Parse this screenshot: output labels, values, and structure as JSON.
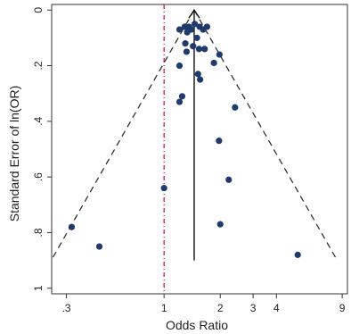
{
  "chart_data": {
    "type": "scatter",
    "title": "",
    "xlabel": "Odds Ratio",
    "ylabel": "Standard Error of ln(OR)",
    "x_scale": "log",
    "x_ticks": [
      0.3,
      1,
      2,
      3,
      4,
      9
    ],
    "x_tick_labels": [
      ".3",
      "1",
      "2",
      "3",
      "4",
      "9"
    ],
    "y_ticks": [
      0,
      0.2,
      0.4,
      0.6,
      0.8,
      1
    ],
    "y_tick_labels": [
      "0",
      ".2",
      ".4",
      ".6",
      ".8",
      "1"
    ],
    "y_reversed": true,
    "xlim": [
      0.25,
      9.6
    ],
    "ylim": [
      -0.02,
      1.02
    ],
    "grid": false,
    "pooled_or": 1.45,
    "null_line_x": 1,
    "funnel_se_max": 0.9,
    "pooled_line_se_range": [
      0,
      0.9
    ],
    "colors": {
      "points": "#1f3a6b",
      "null_line": "#c8005a",
      "funnel": "#222222",
      "pooled_line": "#111111"
    },
    "points": [
      {
        "x": 1.29,
        "y": 0.06
      },
      {
        "x": 1.36,
        "y": 0.06
      },
      {
        "x": 1.33,
        "y": 0.08
      },
      {
        "x": 1.4,
        "y": 0.07
      },
      {
        "x": 1.46,
        "y": 0.05
      },
      {
        "x": 1.5,
        "y": 0.1
      },
      {
        "x": 1.55,
        "y": 0.06
      },
      {
        "x": 1.62,
        "y": 0.07
      },
      {
        "x": 1.7,
        "y": 0.06
      },
      {
        "x": 1.21,
        "y": 0.07
      },
      {
        "x": 1.3,
        "y": 0.12
      },
      {
        "x": 1.43,
        "y": 0.13
      },
      {
        "x": 1.54,
        "y": 0.14
      },
      {
        "x": 1.32,
        "y": 0.15
      },
      {
        "x": 1.65,
        "y": 0.14
      },
      {
        "x": 1.98,
        "y": 0.16
      },
      {
        "x": 1.85,
        "y": 0.19
      },
      {
        "x": 1.21,
        "y": 0.2
      },
      {
        "x": 1.52,
        "y": 0.23
      },
      {
        "x": 1.56,
        "y": 0.25
      },
      {
        "x": 1.25,
        "y": 0.31
      },
      {
        "x": 1.21,
        "y": 0.33
      },
      {
        "x": 2.4,
        "y": 0.35
      },
      {
        "x": 1.97,
        "y": 0.47
      },
      {
        "x": 2.22,
        "y": 0.61
      },
      {
        "x": 1.0,
        "y": 0.64
      },
      {
        "x": 2.0,
        "y": 0.77
      },
      {
        "x": 0.32,
        "y": 0.78
      },
      {
        "x": 0.45,
        "y": 0.85
      },
      {
        "x": 5.2,
        "y": 0.88
      }
    ]
  }
}
